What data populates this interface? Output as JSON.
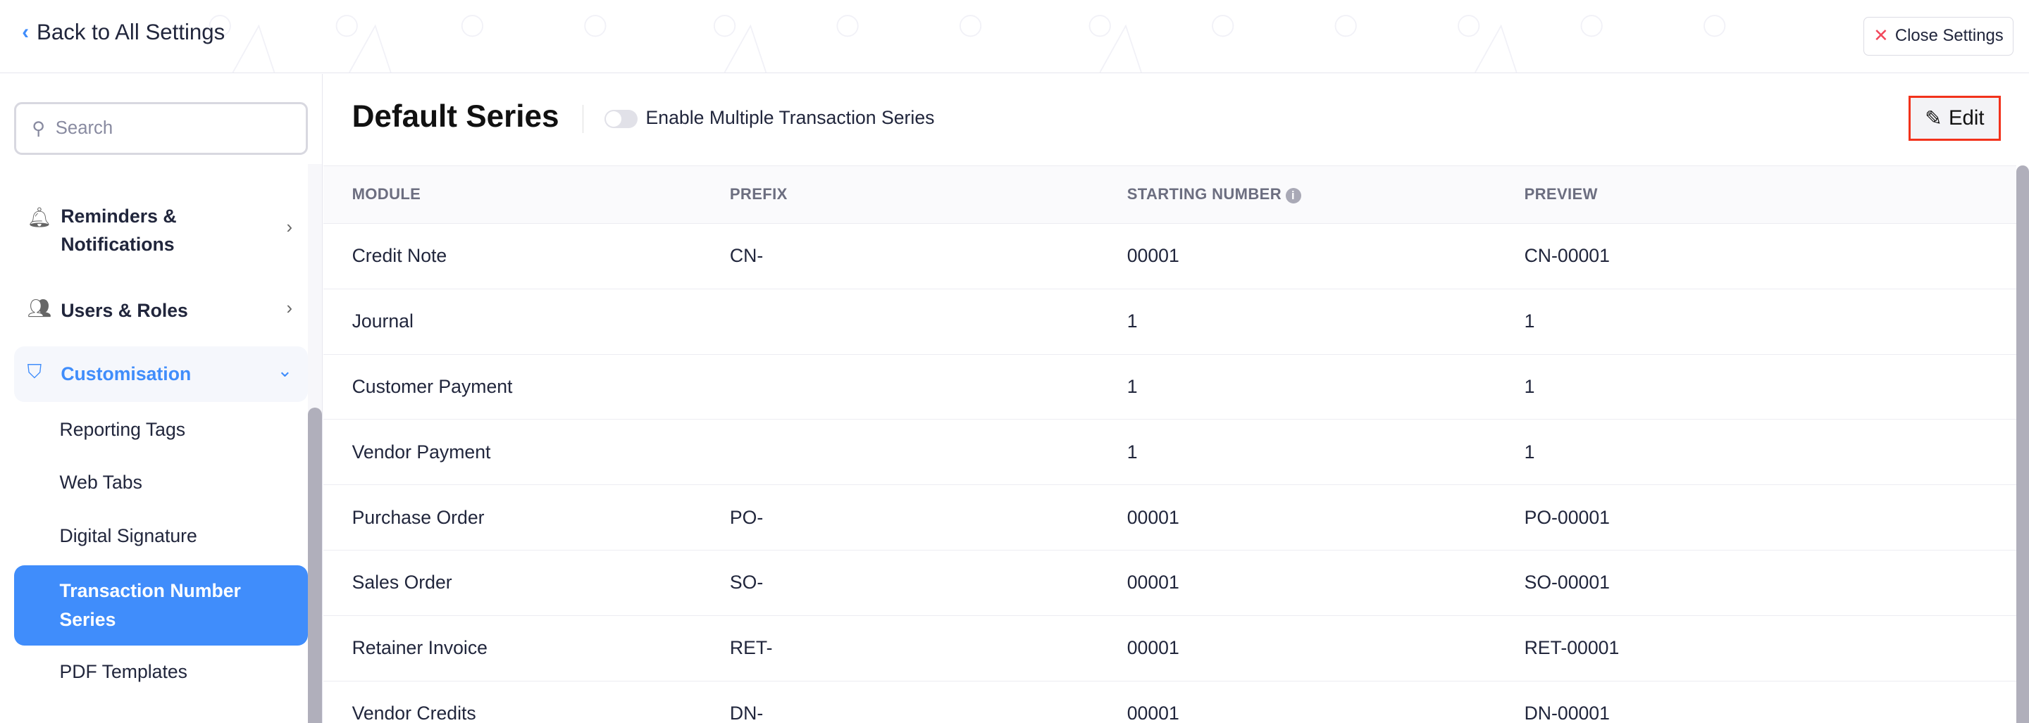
{
  "header": {
    "back_label": "Back to All Settings",
    "close_label": "Close Settings"
  },
  "sidebar": {
    "search_placeholder": "Search",
    "items": [
      {
        "label": "Reminders & Notifications",
        "icon": "bell-icon"
      },
      {
        "label": "Users & Roles",
        "icon": "users-icon"
      },
      {
        "label": "Customisation",
        "icon": "customisation-icon",
        "expanded": true
      }
    ],
    "sub_items": [
      "Reporting Tags",
      "Web Tabs",
      "Digital Signature",
      "Transaction Number Series",
      "PDF Templates"
    ],
    "active": "Transaction Number Series"
  },
  "main": {
    "title": "Default Series",
    "toggle_label": "Enable Multiple Transaction Series",
    "toggle_on": false,
    "edit_label": "Edit",
    "columns": [
      "MODULE",
      "PREFIX",
      "STARTING NUMBER",
      "PREVIEW"
    ],
    "rows": [
      [
        "Credit Note",
        "CN-",
        "00001",
        "CN-00001"
      ],
      [
        "Journal",
        "",
        "1",
        "1"
      ],
      [
        "Customer Payment",
        "",
        "1",
        "1"
      ],
      [
        "Vendor Payment",
        "",
        "1",
        "1"
      ],
      [
        "Purchase Order",
        "PO-",
        "00001",
        "PO-00001"
      ],
      [
        "Sales Order",
        "SO-",
        "00001",
        "SO-00001"
      ],
      [
        "Retainer Invoice",
        "RET-",
        "00001",
        "RET-00001"
      ],
      [
        "Vendor Credits",
        "DN-",
        "00001",
        "DN-00001"
      ]
    ]
  },
  "colors": {
    "accent": "#408dfb",
    "highlight": "#f2321b",
    "close": "#f2475b"
  }
}
